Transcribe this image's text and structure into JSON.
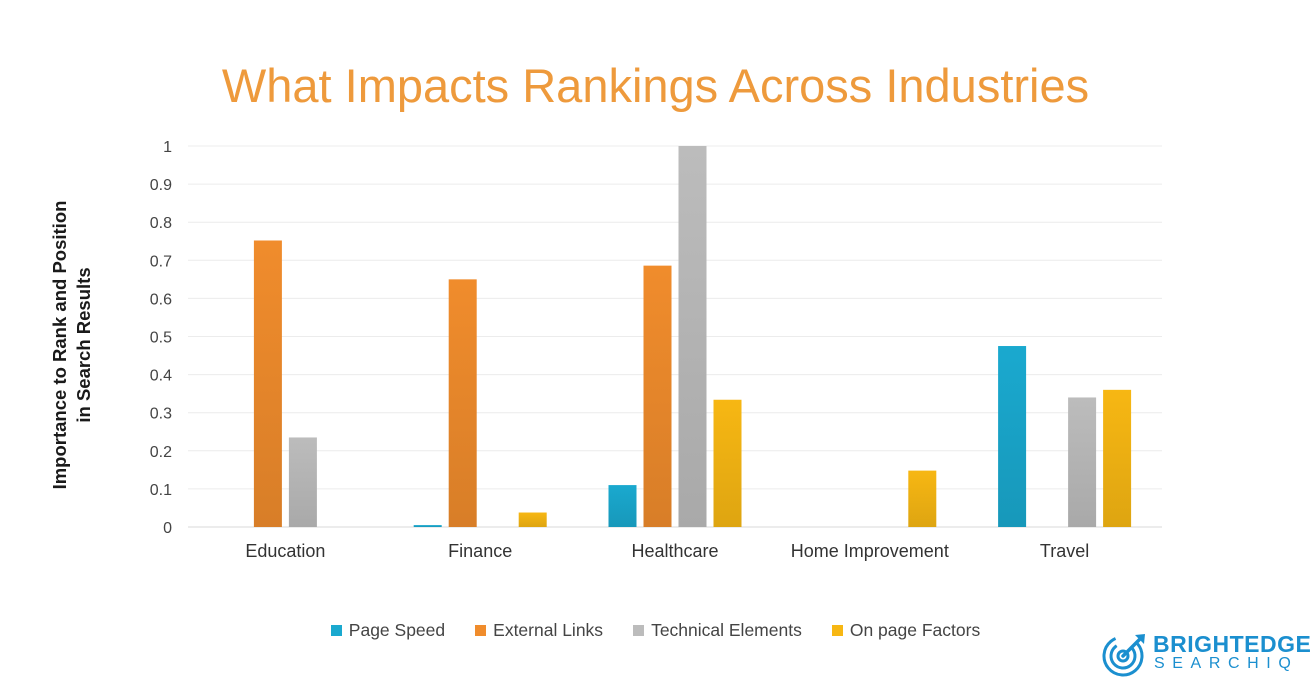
{
  "chart_data": {
    "type": "bar",
    "title": "What Impacts Rankings Across Industries",
    "ylabel_lines": [
      "Importance to Rank and Position",
      "in Search Results"
    ],
    "xlabel": "",
    "categories": [
      "Education",
      "Finance",
      "Healthcare",
      "Home Improvement",
      "Travel"
    ],
    "ylim": [
      0,
      1
    ],
    "yticks": [
      "0",
      "0.1",
      "0.2",
      "0.3",
      "0.4",
      "0.5",
      "0.6",
      "0.7",
      "0.8",
      "0.9",
      "1"
    ],
    "grid": true,
    "legend_position": "bottom",
    "series": [
      {
        "name": "Page Speed",
        "color": "#1aa9cf",
        "values": [
          0,
          0.005,
          0.11,
          0,
          0.475
        ]
      },
      {
        "name": "External Links",
        "color": "#f08c2c",
        "values": [
          0.752,
          0.65,
          0.686,
          0,
          0
        ]
      },
      {
        "name": "Technical Elements",
        "color": "#bcbcbc",
        "values": [
          0.235,
          0,
          1.0,
          0,
          0.34
        ]
      },
      {
        "name": "On page Factors",
        "color": "#f7b713",
        "values": [
          0,
          0.038,
          0.334,
          0.148,
          0.36
        ]
      }
    ]
  },
  "logo": {
    "line1": "BRIGHTEDGE",
    "line2": "SEARCHIQ",
    "color": "#1b8fcf"
  }
}
